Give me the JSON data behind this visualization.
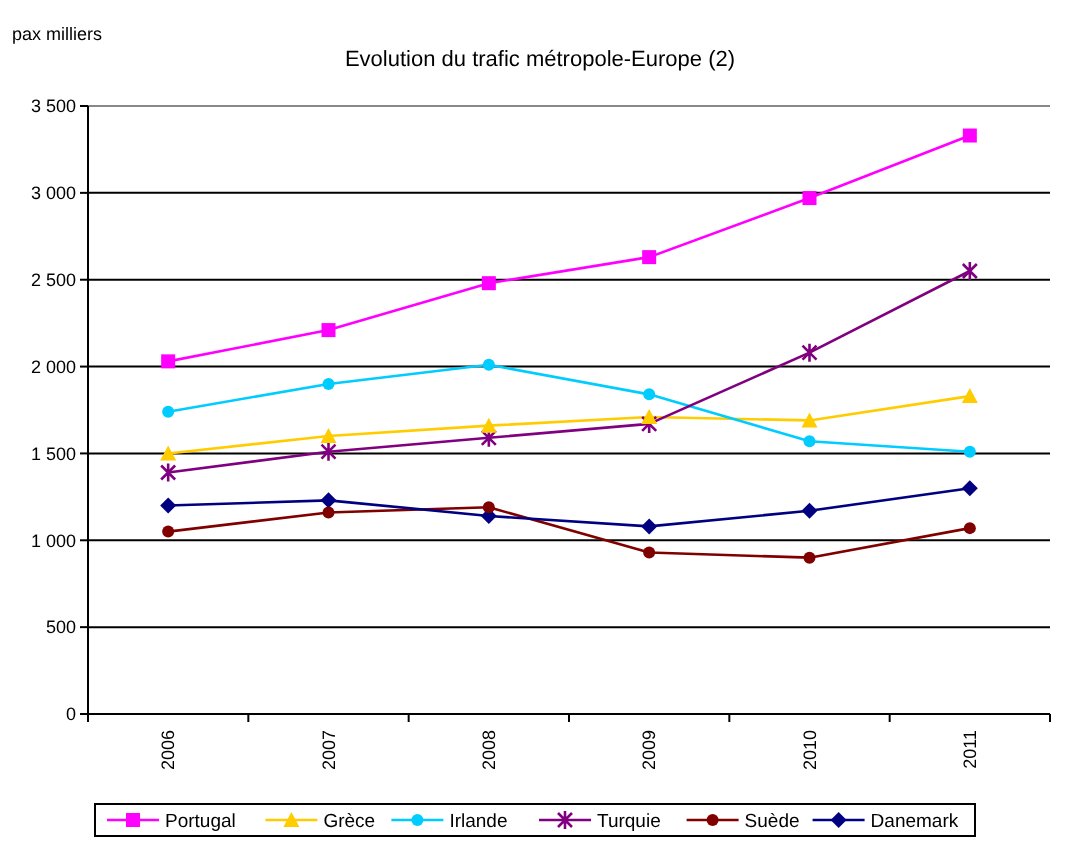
{
  "chart_data": {
    "type": "line",
    "title": "Evolution du trafic métropole-Europe (2)",
    "ylabel": "pax milliers",
    "categories": [
      "2006",
      "2007",
      "2008",
      "2009",
      "2010",
      "2011"
    ],
    "series": [
      {
        "name": "Portugal",
        "color": "#ff00ff",
        "marker": "square",
        "values": [
          2030,
          2210,
          2480,
          2630,
          2970,
          3330
        ]
      },
      {
        "name": "Grèce",
        "color": "#ffcc00",
        "marker": "triangle",
        "values": [
          1500,
          1600,
          1660,
          1710,
          1690,
          1830
        ]
      },
      {
        "name": "Irlande",
        "color": "#00ccff",
        "marker": "circle",
        "values": [
          1740,
          1900,
          2010,
          1840,
          1570,
          1510
        ]
      },
      {
        "name": "Turquie",
        "color": "#800080",
        "marker": "cross",
        "values": [
          1390,
          1510,
          1590,
          1670,
          2080,
          2550
        ]
      },
      {
        "name": "Suède",
        "color": "#800000",
        "marker": "circle",
        "values": [
          1050,
          1160,
          1190,
          930,
          900,
          1070
        ]
      },
      {
        "name": "Danemark",
        "color": "#000080",
        "marker": "diamond",
        "values": [
          1200,
          1230,
          1140,
          1080,
          1170,
          1300
        ]
      }
    ],
    "ylim": [
      0,
      3500
    ],
    "yticks": [
      0,
      500,
      {
        "value": 1000,
        "label": "1 000"
      },
      {
        "value": 1500,
        "label": "1 500"
      },
      {
        "value": 2000,
        "label": "2 000"
      },
      {
        "value": 2500,
        "label": "2 500"
      },
      {
        "value": 3000,
        "label": "3 000"
      },
      {
        "value": 3500,
        "label": "3 500"
      }
    ],
    "grid": "y",
    "legend": "bottom"
  }
}
